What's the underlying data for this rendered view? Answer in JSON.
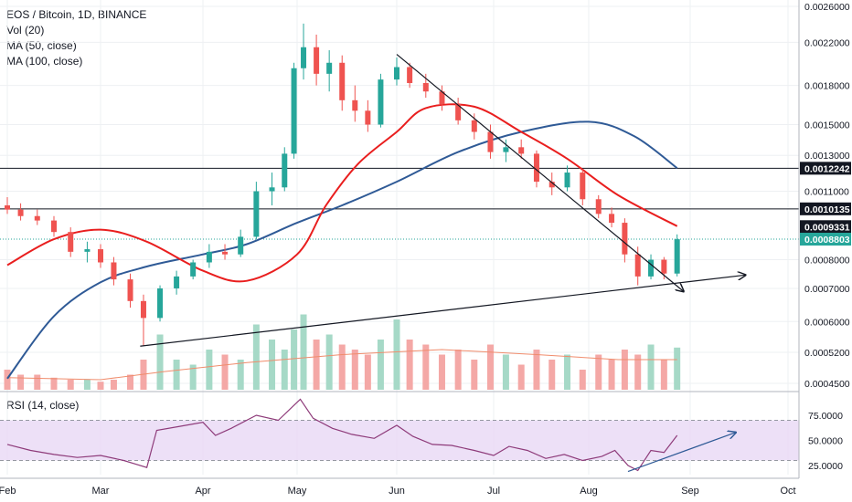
{
  "legend": {
    "symbol": "EOS / Bitcoin, 1D, BINANCE",
    "vol": "Vol (20)",
    "ma50": "MA (50, close)",
    "ma100": "MA (100, close)"
  },
  "rsi_legend": "RSI (14, close)",
  "colors": {
    "up": "#26a69a",
    "down": "#ef5350",
    "vol_up": "#a6d9c7",
    "vol_down": "#f4a8a6",
    "ma50": "#e91e1e",
    "ma100": "#2f5a96",
    "rsi_line": "#8e3b7a",
    "rsi_band": "#e8d8f5",
    "current_price": "#26a69a",
    "trend_line": "#131722"
  },
  "chart_data": {
    "type": "candlestick",
    "title": "EOS / Bitcoin, 1D, BINANCE",
    "x_ticks": [
      "Feb",
      "Mar",
      "Apr",
      "May",
      "Jun",
      "Jul",
      "Aug",
      "Sep",
      "Oct"
    ],
    "y_ticks": [
      "0.0026000",
      "0.0022000",
      "0.0018000",
      "0.0015000",
      "0.0013000",
      "0.0011000",
      "0.0008000",
      "0.0007000",
      "0.0006000",
      "0.0005200",
      "0.0004500"
    ],
    "y_scale": "log",
    "price_levels": [
      {
        "value": 0.0012242,
        "label": "0.0012242",
        "style": "horizontal-line"
      },
      {
        "value": 0.0010135,
        "label": "0.0010135",
        "style": "horizontal-line"
      },
      {
        "value": 0.0009331,
        "label": "0.0009331",
        "style": "ma-tag"
      },
      {
        "value": 0.0008803,
        "label": "0.0008803",
        "style": "current-price"
      }
    ],
    "ma50": [
      [
        "2019-02-01",
        0.00078
      ],
      [
        "2019-02-15",
        0.00088
      ],
      [
        "2019-03-01",
        0.00092
      ],
      [
        "2019-03-15",
        0.00087
      ],
      [
        "2019-04-01",
        0.00076
      ],
      [
        "2019-04-15",
        0.000725
      ],
      [
        "2019-05-01",
        0.00082
      ],
      [
        "2019-05-10",
        0.00103
      ],
      [
        "2019-05-20",
        0.00125
      ],
      [
        "2019-06-01",
        0.00145
      ],
      [
        "2019-06-10",
        0.00162
      ],
      [
        "2019-06-25",
        0.00163
      ],
      [
        "2019-07-10",
        0.00145
      ],
      [
        "2019-07-25",
        0.00128
      ],
      [
        "2019-08-10",
        0.00108
      ],
      [
        "2019-08-28",
        0.000935
      ]
    ],
    "ma100": [
      [
        "2019-02-01",
        0.00046
      ],
      [
        "2019-02-15",
        0.000615
      ],
      [
        "2019-03-01",
        0.00072
      ],
      [
        "2019-03-15",
        0.000775
      ],
      [
        "2019-04-01",
        0.00082
      ],
      [
        "2019-04-15",
        0.00086
      ],
      [
        "2019-05-01",
        0.00095
      ],
      [
        "2019-05-15",
        0.00103
      ],
      [
        "2019-06-01",
        0.00115
      ],
      [
        "2019-06-20",
        0.00132
      ],
      [
        "2019-07-10",
        0.00145
      ],
      [
        "2019-08-01",
        0.00152
      ],
      [
        "2019-08-15",
        0.00142
      ],
      [
        "2019-08-28",
        0.001225
      ]
    ],
    "trend_lines": [
      {
        "from": [
          "2019-06-01",
          0.00208
        ],
        "to": [
          "2019-08-30",
          0.00069
        ],
        "arrow": true
      },
      {
        "from": [
          "2019-03-13",
          0.000535
        ],
        "to": [
          "2019-09-18",
          0.000745
        ],
        "arrow": true
      },
      {
        "from": [
          "2019-03-13",
          0.0006
        ],
        "to": [
          "2019-03-14",
          0.000605
        ],
        "arrow": false
      }
    ],
    "candles": [
      [
        "2019-02-01",
        0.00103,
        0.00107,
        0.00099,
        0.00101
      ],
      [
        "2019-02-05",
        0.00101,
        0.00104,
        0.00096,
        0.00098
      ],
      [
        "2019-02-10",
        0.00098,
        0.00101,
        0.00094,
        0.00096
      ],
      [
        "2019-02-15",
        0.00096,
        0.00098,
        0.00089,
        0.00091
      ],
      [
        "2019-02-20",
        0.00091,
        0.00093,
        0.00081,
        0.00083
      ],
      [
        "2019-02-25",
        0.00083,
        0.00087,
        0.00079,
        0.00084
      ],
      [
        "2019-03-01",
        0.00084,
        0.00086,
        0.00077,
        0.00079
      ],
      [
        "2019-03-05",
        0.00079,
        0.00081,
        0.00071,
        0.00073
      ],
      [
        "2019-03-10",
        0.00073,
        0.00075,
        0.00064,
        0.00066
      ],
      [
        "2019-03-14",
        0.00066,
        0.00068,
        0.000535,
        0.00061
      ],
      [
        "2019-03-19",
        0.00061,
        0.00071,
        0.0006,
        0.0007
      ],
      [
        "2019-03-24",
        0.0007,
        0.00076,
        0.00068,
        0.00074
      ],
      [
        "2019-03-29",
        0.00074,
        0.0008,
        0.00073,
        0.00079
      ],
      [
        "2019-04-03",
        0.00079,
        0.00086,
        0.00077,
        0.00083
      ],
      [
        "2019-04-08",
        0.00083,
        0.00086,
        0.0008,
        0.00082
      ],
      [
        "2019-04-13",
        0.00082,
        0.00092,
        0.00081,
        0.00089
      ],
      [
        "2019-04-18",
        0.00089,
        0.00115,
        0.00088,
        0.0011
      ],
      [
        "2019-04-23",
        0.0011,
        0.0012,
        0.00103,
        0.00112
      ],
      [
        "2019-04-27",
        0.00112,
        0.00135,
        0.0011,
        0.00131
      ],
      [
        "2019-04-30",
        0.00131,
        0.002,
        0.00128,
        0.00195
      ],
      [
        "2019-05-03",
        0.00195,
        0.0024,
        0.00185,
        0.00215
      ],
      [
        "2019-05-07",
        0.00215,
        0.00228,
        0.0018,
        0.0019
      ],
      [
        "2019-05-11",
        0.0019,
        0.00212,
        0.00175,
        0.002
      ],
      [
        "2019-05-15",
        0.002,
        0.00207,
        0.0016,
        0.00168
      ],
      [
        "2019-05-19",
        0.00168,
        0.0018,
        0.00152,
        0.0016
      ],
      [
        "2019-05-23",
        0.0016,
        0.00168,
        0.00145,
        0.0015
      ],
      [
        "2019-05-27",
        0.0015,
        0.0019,
        0.00148,
        0.00185
      ],
      [
        "2019-06-01",
        0.00185,
        0.00205,
        0.0018,
        0.00196
      ],
      [
        "2019-06-05",
        0.00196,
        0.002,
        0.00178,
        0.00182
      ],
      [
        "2019-06-10",
        0.00182,
        0.0019,
        0.0017,
        0.00175
      ],
      [
        "2019-06-15",
        0.00175,
        0.0018,
        0.0016,
        0.00165
      ],
      [
        "2019-06-20",
        0.00165,
        0.0017,
        0.0015,
        0.00153
      ],
      [
        "2019-06-25",
        0.00153,
        0.00158,
        0.0014,
        0.00145
      ],
      [
        "2019-06-30",
        0.00145,
        0.0015,
        0.00128,
        0.00132
      ],
      [
        "2019-07-05",
        0.00132,
        0.0014,
        0.00126,
        0.00135
      ],
      [
        "2019-07-10",
        0.00135,
        0.0014,
        0.00128,
        0.00131
      ],
      [
        "2019-07-15",
        0.00131,
        0.00133,
        0.00112,
        0.00115
      ],
      [
        "2019-07-20",
        0.00115,
        0.0012,
        0.00108,
        0.00112
      ],
      [
        "2019-07-25",
        0.00112,
        0.00124,
        0.0011,
        0.0012
      ],
      [
        "2019-07-30",
        0.0012,
        0.00122,
        0.00103,
        0.00106
      ],
      [
        "2019-08-04",
        0.00106,
        0.00108,
        0.00097,
        0.00099
      ],
      [
        "2019-08-08",
        0.00099,
        0.00102,
        0.00093,
        0.00095
      ],
      [
        "2019-08-12",
        0.00095,
        0.00097,
        0.00079,
        0.00082
      ],
      [
        "2019-08-16",
        0.00082,
        0.00085,
        0.00071,
        0.00074
      ],
      [
        "2019-08-20",
        0.00074,
        0.00082,
        0.00073,
        0.0008
      ],
      [
        "2019-08-24",
        0.0008,
        0.00081,
        0.00073,
        0.00075
      ],
      [
        "2019-08-28",
        0.00075,
        0.0009,
        0.00074,
        0.00088
      ]
    ],
    "volume": [
      [
        "2019-02-01",
        0.2
      ],
      [
        "2019-02-05",
        0.15
      ],
      [
        "2019-02-10",
        0.15
      ],
      [
        "2019-02-15",
        0.12
      ],
      [
        "2019-02-20",
        0.1
      ],
      [
        "2019-02-25",
        0.1
      ],
      [
        "2019-03-01",
        0.08
      ],
      [
        "2019-03-05",
        0.1
      ],
      [
        "2019-03-10",
        0.15
      ],
      [
        "2019-03-14",
        0.3
      ],
      [
        "2019-03-19",
        0.55
      ],
      [
        "2019-03-24",
        0.3
      ],
      [
        "2019-03-29",
        0.25
      ],
      [
        "2019-04-03",
        0.4
      ],
      [
        "2019-04-08",
        0.35
      ],
      [
        "2019-04-13",
        0.3
      ],
      [
        "2019-04-18",
        0.65
      ],
      [
        "2019-04-23",
        0.5
      ],
      [
        "2019-04-27",
        0.4
      ],
      [
        "2019-04-30",
        0.6
      ],
      [
        "2019-05-03",
        0.75
      ],
      [
        "2019-05-07",
        0.5
      ],
      [
        "2019-05-11",
        0.55
      ],
      [
        "2019-05-15",
        0.45
      ],
      [
        "2019-05-19",
        0.4
      ],
      [
        "2019-05-23",
        0.35
      ],
      [
        "2019-05-27",
        0.5
      ],
      [
        "2019-06-01",
        0.7
      ],
      [
        "2019-06-05",
        0.5
      ],
      [
        "2019-06-10",
        0.45
      ],
      [
        "2019-06-15",
        0.35
      ],
      [
        "2019-06-20",
        0.4
      ],
      [
        "2019-06-25",
        0.3
      ],
      [
        "2019-06-30",
        0.45
      ],
      [
        "2019-07-05",
        0.35
      ],
      [
        "2019-07-10",
        0.25
      ],
      [
        "2019-07-15",
        0.4
      ],
      [
        "2019-07-20",
        0.3
      ],
      [
        "2019-07-25",
        0.35
      ],
      [
        "2019-07-30",
        0.2
      ],
      [
        "2019-08-04",
        0.35
      ],
      [
        "2019-08-08",
        0.3
      ],
      [
        "2019-08-12",
        0.4
      ],
      [
        "2019-08-16",
        0.35
      ],
      [
        "2019-08-20",
        0.45
      ],
      [
        "2019-08-24",
        0.3
      ],
      [
        "2019-08-28",
        0.42
      ]
    ],
    "volume_ma": [
      [
        "2019-02-01",
        0.12
      ],
      [
        "2019-03-01",
        0.1
      ],
      [
        "2019-03-20",
        0.18
      ],
      [
        "2019-04-15",
        0.27
      ],
      [
        "2019-05-15",
        0.35
      ],
      [
        "2019-06-15",
        0.4
      ],
      [
        "2019-07-15",
        0.35
      ],
      [
        "2019-08-10",
        0.3
      ],
      [
        "2019-08-28",
        0.3
      ]
    ],
    "rsi": {
      "label": "RSI (14, close)",
      "y_ticks": [
        "75.0000",
        "50.0000",
        "25.0000"
      ],
      "bands": [
        70,
        30
      ],
      "values": [
        [
          "2019-02-01",
          46
        ],
        [
          "2019-02-08",
          40
        ],
        [
          "2019-02-15",
          36
        ],
        [
          "2019-02-22",
          33
        ],
        [
          "2019-03-01",
          35
        ],
        [
          "2019-03-08",
          30
        ],
        [
          "2019-03-15",
          23
        ],
        [
          "2019-03-18",
          60
        ],
        [
          "2019-03-25",
          64
        ],
        [
          "2019-04-01",
          68
        ],
        [
          "2019-04-05",
          55
        ],
        [
          "2019-04-10",
          62
        ],
        [
          "2019-04-18",
          75
        ],
        [
          "2019-04-25",
          70
        ],
        [
          "2019-05-02",
          91
        ],
        [
          "2019-05-06",
          72
        ],
        [
          "2019-05-12",
          62
        ],
        [
          "2019-05-18",
          56
        ],
        [
          "2019-05-25",
          52
        ],
        [
          "2019-06-01",
          65
        ],
        [
          "2019-06-06",
          54
        ],
        [
          "2019-06-12",
          46
        ],
        [
          "2019-06-18",
          45
        ],
        [
          "2019-06-25",
          40
        ],
        [
          "2019-07-01",
          35
        ],
        [
          "2019-07-06",
          44
        ],
        [
          "2019-07-12",
          40
        ],
        [
          "2019-07-18",
          32
        ],
        [
          "2019-07-24",
          36
        ],
        [
          "2019-07-30",
          30
        ],
        [
          "2019-08-05",
          34
        ],
        [
          "2019-08-09",
          40
        ],
        [
          "2019-08-13",
          25
        ],
        [
          "2019-08-16",
          20
        ],
        [
          "2019-08-20",
          40
        ],
        [
          "2019-08-24",
          38
        ],
        [
          "2019-08-28",
          55
        ]
      ],
      "trend_line": {
        "from": [
          "2019-08-13",
          19
        ],
        "to": [
          "2019-09-15",
          58
        ],
        "arrow": true
      }
    }
  }
}
